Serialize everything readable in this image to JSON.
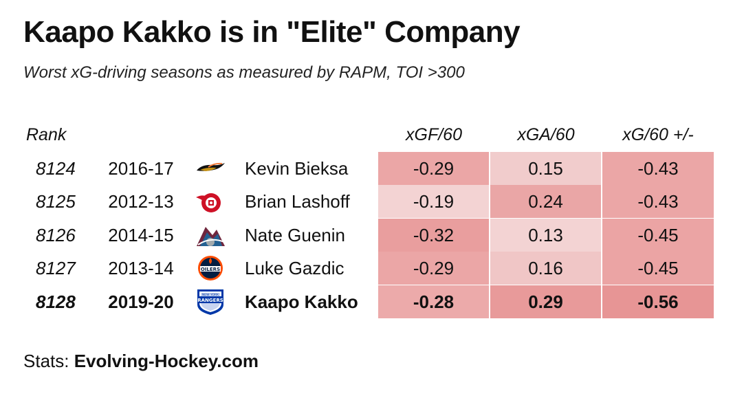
{
  "title": "Kaapo Kakko is in \"Elite\" Company",
  "subtitle": "Worst xG-driving seasons as measured by RAPM, TOI >300",
  "footer": {
    "prefix": "Stats: ",
    "source": "Evolving-Hockey.com"
  },
  "chart_data": {
    "type": "table",
    "columns": [
      "Rank",
      "",
      "",
      "",
      "xGF/60",
      "xGA/60",
      "xG/60 +/-"
    ],
    "rows": [
      {
        "rank": "8124",
        "season": "2016-17",
        "team_logo": "anaheim-ducks-logo",
        "player": "Kevin Bieksa",
        "xgf60": "-0.29",
        "xga60": "0.15",
        "xg60_diff": "-0.43",
        "colors": [
          "#eba6a6",
          "#f1cccc",
          "#eba6a6"
        ]
      },
      {
        "rank": "8125",
        "season": "2012-13",
        "team_logo": "detroit-red-wings-logo",
        "player": "Brian Lashoff",
        "xgf60": "-0.19",
        "xga60": "0.24",
        "xg60_diff": "-0.43",
        "colors": [
          "#f3d3d3",
          "#eaa6a6",
          "#eba6a6"
        ]
      },
      {
        "rank": "8126",
        "season": "2014-15",
        "team_logo": "colorado-avalanche-logo",
        "player": "Nate Guenin",
        "xgf60": "-0.32",
        "xga60": "0.13",
        "xg60_diff": "-0.45",
        "colors": [
          "#e99e9e",
          "#f3d3d3",
          "#eba4a4"
        ]
      },
      {
        "rank": "8127",
        "season": "2013-14",
        "team_logo": "edmonton-oilers-logo",
        "player": "Luke Gazdic",
        "xgf60": "-0.29",
        "xga60": "0.16",
        "xg60_diff": "-0.45",
        "colors": [
          "#eba6a6",
          "#f0c6c6",
          "#eba4a4"
        ]
      },
      {
        "rank": "8128",
        "season": "2019-20",
        "team_logo": "new-york-rangers-logo",
        "player": "Kaapo Kakko",
        "xgf60": "-0.28",
        "xga60": "0.29",
        "xg60_diff": "-0.56",
        "colors": [
          "#ecaaaa",
          "#e89a9a",
          "#e79595"
        ],
        "highlight": true
      }
    ]
  }
}
